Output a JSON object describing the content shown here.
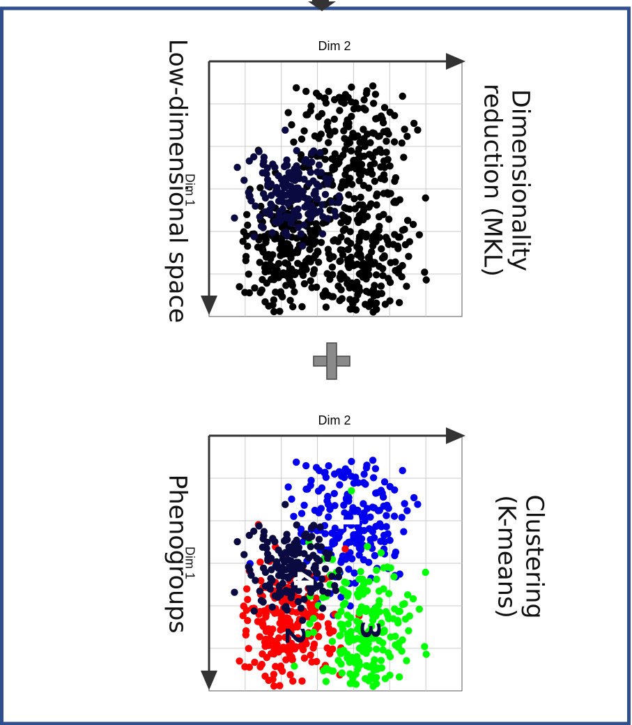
{
  "top_panel": {
    "method_label_line1": "Dimensionality",
    "method_label_line2": "reduction (MKL)",
    "space_label": "Low-dimensional space",
    "x_axis_label": "Dim 2",
    "y_axis_label": "Dim 1",
    "point_color": "#000000",
    "region_color": "#0a0a40"
  },
  "connector": {
    "icon": "plus-icon",
    "color": "#8a8a8a"
  },
  "bottom_panel": {
    "method_label_line1": "Clustering",
    "method_label_line2": "(K-means)",
    "space_label": "Phenogroups",
    "x_axis_label": "Dim 2",
    "y_axis_label": "Dim 1",
    "clusters": [
      {
        "label": "1",
        "color": "#0000ee"
      },
      {
        "label": "2",
        "color": "#ff0000"
      },
      {
        "label": "3",
        "color": "#00ff00"
      },
      {
        "label": "4",
        "color": "#0a0a40"
      }
    ]
  },
  "colors": {
    "frame": "#2f4f8f",
    "grid": "#c9c9c9",
    "axis": "#333333"
  }
}
